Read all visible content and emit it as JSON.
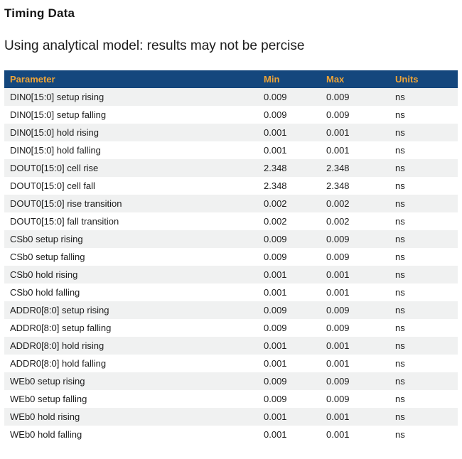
{
  "page": {
    "title": "Timing Data",
    "subtitle": "Using analytical model: results may not be percise"
  },
  "colors": {
    "header_bg": "#14477d",
    "header_text": "#efa436",
    "row_alt_bg": "#f0f1f1",
    "text_color": "#1c1c1c"
  },
  "table": {
    "columns": [
      "Parameter",
      "Min",
      "Max",
      "Units"
    ],
    "rows": [
      {
        "parameter": "DIN0[15:0] setup rising",
        "min": "0.009",
        "max": "0.009",
        "units": "ns"
      },
      {
        "parameter": "DIN0[15:0] setup falling",
        "min": "0.009",
        "max": "0.009",
        "units": "ns"
      },
      {
        "parameter": "DIN0[15:0] hold rising",
        "min": "0.001",
        "max": "0.001",
        "units": "ns"
      },
      {
        "parameter": "DIN0[15:0] hold falling",
        "min": "0.001",
        "max": "0.001",
        "units": "ns"
      },
      {
        "parameter": "DOUT0[15:0] cell rise",
        "min": "2.348",
        "max": "2.348",
        "units": "ns"
      },
      {
        "parameter": "DOUT0[15:0] cell fall",
        "min": "2.348",
        "max": "2.348",
        "units": "ns"
      },
      {
        "parameter": "DOUT0[15:0] rise transition",
        "min": "0.002",
        "max": "0.002",
        "units": "ns"
      },
      {
        "parameter": "DOUT0[15:0] fall transition",
        "min": "0.002",
        "max": "0.002",
        "units": "ns"
      },
      {
        "parameter": "CSb0 setup rising",
        "min": "0.009",
        "max": "0.009",
        "units": "ns"
      },
      {
        "parameter": "CSb0 setup falling",
        "min": "0.009",
        "max": "0.009",
        "units": "ns"
      },
      {
        "parameter": "CSb0 hold rising",
        "min": "0.001",
        "max": "0.001",
        "units": "ns"
      },
      {
        "parameter": "CSb0 hold falling",
        "min": "0.001",
        "max": "0.001",
        "units": "ns"
      },
      {
        "parameter": "ADDR0[8:0] setup rising",
        "min": "0.009",
        "max": "0.009",
        "units": "ns"
      },
      {
        "parameter": "ADDR0[8:0] setup falling",
        "min": "0.009",
        "max": "0.009",
        "units": "ns"
      },
      {
        "parameter": "ADDR0[8:0] hold rising",
        "min": "0.001",
        "max": "0.001",
        "units": "ns"
      },
      {
        "parameter": "ADDR0[8:0] hold falling",
        "min": "0.001",
        "max": "0.001",
        "units": "ns"
      },
      {
        "parameter": "WEb0 setup rising",
        "min": "0.009",
        "max": "0.009",
        "units": "ns"
      },
      {
        "parameter": "WEb0 setup falling",
        "min": "0.009",
        "max": "0.009",
        "units": "ns"
      },
      {
        "parameter": "WEb0 hold rising",
        "min": "0.001",
        "max": "0.001",
        "units": "ns"
      },
      {
        "parameter": "WEb0 hold falling",
        "min": "0.001",
        "max": "0.001",
        "units": "ns"
      }
    ]
  }
}
